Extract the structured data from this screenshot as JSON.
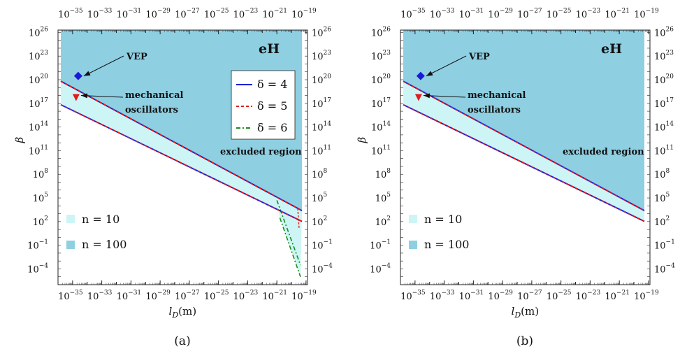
{
  "chart_data": [
    {
      "type": "area",
      "panel_caption": "(a)",
      "title": "",
      "xlabel": "l_D(m)",
      "ylabel": "β",
      "x_scale": "log",
      "y_scale": "log",
      "xlim": [
        "1e-36",
        "1e-19"
      ],
      "ylim": [
        "1e-6",
        "1e26"
      ],
      "x_tick_labels": [
        "10^-35",
        "10^-33",
        "10^-31",
        "10^-29",
        "10^-27",
        "10^-25",
        "10^-23",
        "10^-21",
        "10^-19"
      ],
      "y_tick_labels": [
        "10^26",
        "10^23",
        "10^20",
        "10^17",
        "10^14",
        "10^11",
        "10^8",
        "10^5",
        "10^2",
        "10^-1",
        "10^-4"
      ],
      "region_label": "eH",
      "excluded_label": "excluded region",
      "colors": {
        "excluded": "#8ecfe2",
        "band": "#cdf5f5",
        "delta4": "#1f1fd6",
        "delta5": "#e41a1c",
        "delta6": "#1a8c1a",
        "vep": "#1a1ad6",
        "mech": "#e41a1c"
      },
      "series": [
        {
          "name": "δ = 4",
          "style": "solid",
          "upper": [
            [
              "1e-36",
              "1e20"
            ],
            [
              "1e-19",
              "1.3e3"
            ]
          ],
          "lower": [
            [
              "1e-36",
              "1e17.6"
            ],
            [
              "1e-19",
              "6e1"
            ]
          ]
        },
        {
          "name": "δ = 5",
          "style": "dashed",
          "upper": [
            [
              "1e-36",
              "1e20"
            ],
            [
              "1e-19",
              "1.3e3"
            ]
          ],
          "lower": [
            [
              "1e-36",
              "1e17.6"
            ],
            [
              "1e-19",
              "6e1"
            ]
          ]
        },
        {
          "name": "δ = 6",
          "style": "dash-dot",
          "kink": [
            [
              "1e-21",
              "5e4"
            ],
            [
              "1e-19",
              "3e-4"
            ],
            [
              "2e-21",
              "3e2"
            ],
            [
              "1e-19",
              "1e-5"
            ]
          ]
        }
      ],
      "shaded_regions": [
        {
          "name": "n = 10",
          "note": "band between the two lines"
        },
        {
          "name": "n = 100",
          "note": "excluded region above the upper line"
        }
      ],
      "points": [
        {
          "label": "VEP",
          "x": "1e-35",
          "y": "3e20",
          "marker": "diamond"
        },
        {
          "label": "mechanical oscillators",
          "x": "1e-35",
          "y": "1e18.5",
          "marker": "triangle-down"
        }
      ],
      "legend": {
        "placement": "center-right",
        "entries": [
          "δ = 4",
          "δ = 5",
          "δ = 6"
        ]
      },
      "region_legend": {
        "placement": "bottom-left",
        "entries": [
          "n = 10",
          "n = 100"
        ]
      }
    },
    {
      "type": "area",
      "panel_caption": "(b)",
      "title": "",
      "xlabel": "l_D(m)",
      "ylabel": "β",
      "x_scale": "log",
      "y_scale": "log",
      "xlim": [
        "1e-36",
        "1e-19"
      ],
      "ylim": [
        "1e-6",
        "1e26"
      ],
      "x_tick_labels": [
        "10^-35",
        "10^-33",
        "10^-31",
        "10^-29",
        "10^-27",
        "10^-25",
        "10^-23",
        "10^-21",
        "10^-19"
      ],
      "y_tick_labels": [
        "10^26",
        "10^23",
        "10^20",
        "10^17",
        "10^14",
        "10^11",
        "10^8",
        "10^5",
        "10^2",
        "10^-1",
        "10^-4"
      ],
      "region_label": "eH",
      "excluded_label": "excluded region",
      "series": [
        {
          "name": "δ = 4",
          "style": "solid",
          "upper": [
            [
              "1e-36",
              "1e20"
            ],
            [
              "1e-19",
              "1.3e3"
            ]
          ],
          "lower": [
            [
              "1e-36",
              "1e17.6"
            ],
            [
              "1e-19",
              "6e1"
            ]
          ]
        },
        {
          "name": "δ = 5",
          "style": "dashed",
          "upper": [
            [
              "1e-36",
              "1e20"
            ],
            [
              "1e-19",
              "1.3e3"
            ]
          ],
          "lower": [
            [
              "1e-36",
              "1e17.6"
            ],
            [
              "1e-19",
              "6e1"
            ]
          ]
        }
      ],
      "points": [
        {
          "label": "VEP",
          "x": "1e-35",
          "y": "3e20",
          "marker": "diamond"
        },
        {
          "label": "mechanical oscillators",
          "x": "1e-35",
          "y": "1e18.5",
          "marker": "triangle-down"
        }
      ],
      "region_legend": {
        "placement": "bottom-left",
        "entries": [
          "n = 10",
          "n = 100"
        ]
      }
    }
  ],
  "text": {
    "vep": "VEP",
    "mech1": "mechanical",
    "mech2": "oscillators",
    "eh": "eH",
    "excluded": "excluded region",
    "n10": "n = 10",
    "n100": "n = 100",
    "d4": "δ = 4",
    "d5": "δ = 5",
    "d6": "δ = 6",
    "xlabel_main": "l",
    "xlabel_sub": "D",
    "xlabel_unit": "(m)",
    "ylabel": "β",
    "cap_a": "(a)",
    "cap_b": "(b)"
  }
}
